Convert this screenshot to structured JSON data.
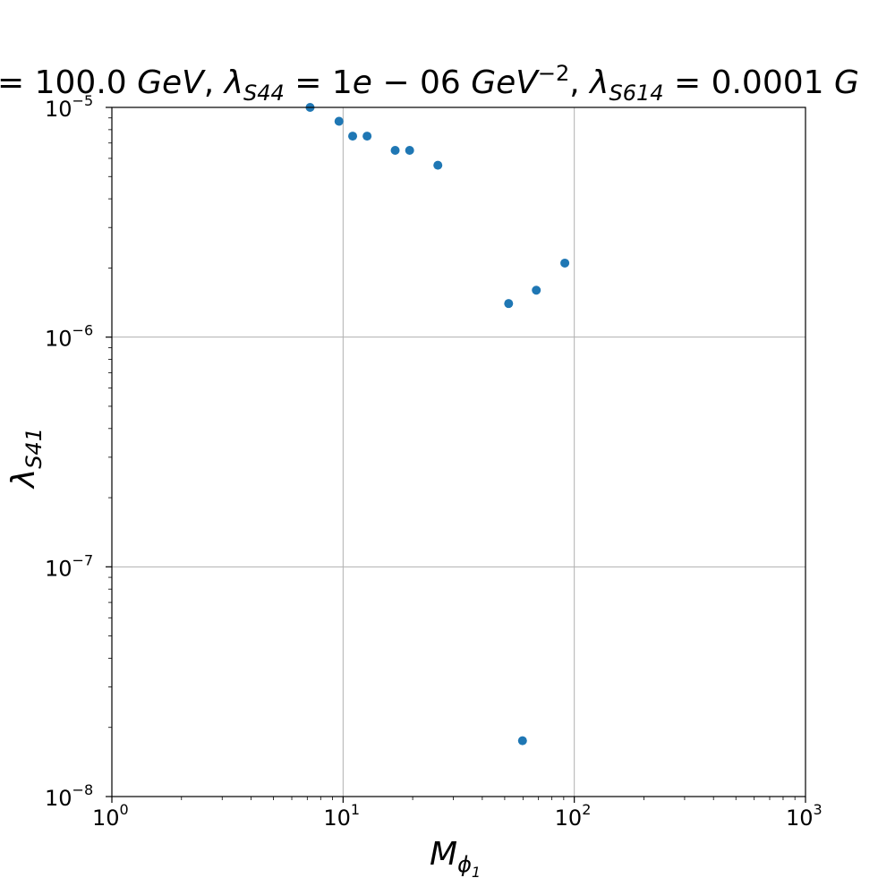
{
  "chart_data": {
    "type": "scatter",
    "title": "= 100.0 GeV, λS44 = 1e − 06 GeV−2, λS614 = 0.0001 G",
    "title_parts": {
      "lead": "= 100.0 ",
      "gev1": "GeV",
      "sep1": ", ",
      "lam1": "λ",
      "lam1_sub": "S44",
      "eq1": " = 1",
      "e1": "e",
      "minus": " − 06 ",
      "gev2": "GeV",
      "gev2_sup": "−2",
      "sep2": ", ",
      "lam2": "λ",
      "lam2_sub": "S614",
      "eq2": " = 0.0001 ",
      "tail": "G"
    },
    "xlabel": "Mϕ1",
    "xlabel_main": "M",
    "xlabel_sub": "ϕ",
    "xlabel_subsub": "1",
    "ylabel": "λS41",
    "ylabel_main": "λ",
    "ylabel_sub": "S41",
    "x_scale": "log",
    "y_scale": "log",
    "xlim": [
      1,
      1000
    ],
    "ylim": [
      1e-08,
      1e-05
    ],
    "grid": true,
    "marker_color": "#1f77b4",
    "x_ticks": [
      {
        "value": 1,
        "base": "10",
        "exp": "0"
      },
      {
        "value": 10,
        "base": "10",
        "exp": "1"
      },
      {
        "value": 100,
        "base": "10",
        "exp": "2"
      },
      {
        "value": 1000,
        "base": "10",
        "exp": "3"
      }
    ],
    "y_ticks": [
      {
        "value": 1e-08,
        "base": "10",
        "exp": "−8"
      },
      {
        "value": 1e-07,
        "base": "10",
        "exp": "−7"
      },
      {
        "value": 1e-06,
        "base": "10",
        "exp": "−6"
      },
      {
        "value": 1e-05,
        "base": "10",
        "exp": "−5"
      }
    ],
    "points": [
      {
        "x": 7.2,
        "y": 1e-05
      },
      {
        "x": 9.6,
        "y": 8.7e-06
      },
      {
        "x": 11.0,
        "y": 7.5e-06
      },
      {
        "x": 12.7,
        "y": 7.5e-06
      },
      {
        "x": 16.8,
        "y": 6.5e-06
      },
      {
        "x": 19.4,
        "y": 6.5e-06
      },
      {
        "x": 25.7,
        "y": 5.6e-06
      },
      {
        "x": 52.0,
        "y": 1.4e-06
      },
      {
        "x": 59.7,
        "y": 1.75e-08
      },
      {
        "x": 68.5,
        "y": 1.6e-06
      },
      {
        "x": 91.0,
        "y": 2.1e-06
      }
    ]
  }
}
